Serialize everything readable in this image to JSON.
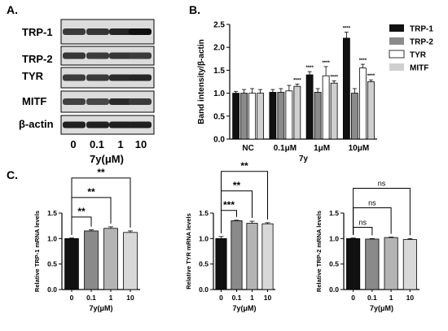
{
  "panel_labels": {
    "a": "A.",
    "b": "B.",
    "c": "C."
  },
  "colors": {
    "black": "#111111",
    "dark_gray": "#8a8a8a",
    "white": "#ffffff",
    "light_gray": "#cfcfcf",
    "stroke": "#000000"
  },
  "blot": {
    "rows": [
      "TRP-1",
      "TRP-2",
      "TYR",
      "MITF",
      "β-actin"
    ],
    "lanes": [
      "0",
      "0.1",
      "1",
      "10"
    ],
    "xlabel": "7y(μM)"
  },
  "chart_data": [
    {
      "type": "bar",
      "id": "B",
      "categories": [
        "NC",
        "0.1μM",
        "1μM",
        "10μM"
      ],
      "xlabel": "7y",
      "ylabel": "Band intensity/β-actin",
      "ylim": [
        0.0,
        2.5
      ],
      "yticks": [
        "0.0",
        "0.5",
        "1.0",
        "1.5",
        "2.0",
        "2.5"
      ],
      "legend_position": "right",
      "series": [
        {
          "name": "TRP-1",
          "color": "#111111",
          "values": [
            1.0,
            1.02,
            1.4,
            2.2
          ],
          "errors": [
            0.04,
            0.06,
            0.07,
            0.13
          ],
          "sig": [
            "",
            "",
            "****",
            "****"
          ]
        },
        {
          "name": "TRP-2",
          "color": "#8a8a8a",
          "values": [
            1.0,
            1.02,
            1.02,
            1.0
          ],
          "errors": [
            0.08,
            0.08,
            0.08,
            0.1
          ],
          "sig": [
            "",
            "",
            "",
            ""
          ]
        },
        {
          "name": "TYR",
          "color": "#ffffff",
          "values": [
            1.0,
            1.05,
            1.38,
            1.55
          ],
          "errors": [
            0.1,
            0.12,
            0.2,
            0.08
          ],
          "sig": [
            "",
            "",
            "****",
            "****"
          ]
        },
        {
          "name": "MITF",
          "color": "#cfcfcf",
          "values": [
            1.0,
            1.15,
            1.22,
            1.25
          ],
          "errors": [
            0.08,
            0.05,
            0.05,
            0.04
          ],
          "sig": [
            "",
            "****",
            "****",
            "****"
          ]
        }
      ]
    },
    {
      "type": "bar",
      "id": "C1",
      "categories": [
        "0",
        "0.1",
        "1",
        "10"
      ],
      "xlabel": "7y(μM)",
      "ylabel": "Relative TRP-1 mRNA levels",
      "ylim": [
        0.0,
        1.5
      ],
      "yticks": [
        "0.0",
        "0.5",
        "1.0",
        "1.5"
      ],
      "values": [
        1.0,
        1.15,
        1.2,
        1.12
      ],
      "errors": [
        0.01,
        0.02,
        0.03,
        0.03
      ],
      "colors": [
        "#111111",
        "#8a8a8a",
        "#b4b4b4",
        "#d8d8d8"
      ],
      "brackets": [
        {
          "from": 0,
          "to": 1,
          "level": 0,
          "label": "**"
        },
        {
          "from": 0,
          "to": 2,
          "level": 1,
          "label": "**"
        },
        {
          "from": 0,
          "to": 3,
          "level": 2,
          "label": "**"
        }
      ]
    },
    {
      "type": "bar",
      "id": "C2",
      "categories": [
        "0",
        "0.1",
        "1",
        "10"
      ],
      "xlabel": "7y(μM)",
      "ylabel": "Relative TYR mRNA levels",
      "ylim": [
        0.0,
        1.5
      ],
      "yticks": [
        "0.0",
        "0.5",
        "1.0",
        "1.5"
      ],
      "values": [
        1.0,
        1.35,
        1.3,
        1.29
      ],
      "errors": [
        0.04,
        0.01,
        0.04,
        0.02
      ],
      "colors": [
        "#111111",
        "#8a8a8a",
        "#b4b4b4",
        "#d8d8d8"
      ],
      "brackets": [
        {
          "from": 0,
          "to": 1,
          "level": 0,
          "label": "***"
        },
        {
          "from": 0,
          "to": 2,
          "level": 1,
          "label": "**"
        },
        {
          "from": 0,
          "to": 3,
          "level": 2,
          "label": "**"
        }
      ]
    },
    {
      "type": "bar",
      "id": "C3",
      "categories": [
        "0",
        "0.1",
        "1",
        "10"
      ],
      "xlabel": "7y(μM)",
      "ylabel": "Relative TRP-2 mRNA levels",
      "ylim": [
        0.0,
        1.5
      ],
      "yticks": [
        "0.0",
        "0.5",
        "1.0",
        "1.5"
      ],
      "values": [
        1.0,
        0.99,
        1.02,
        0.98
      ],
      "errors": [
        0.01,
        0.01,
        0.01,
        0.02
      ],
      "colors": [
        "#111111",
        "#8a8a8a",
        "#b4b4b4",
        "#d8d8d8"
      ],
      "brackets": [
        {
          "from": 0,
          "to": 1,
          "level": 0,
          "label": "ns"
        },
        {
          "from": 0,
          "to": 2,
          "level": 1,
          "label": "ns"
        },
        {
          "from": 0,
          "to": 3,
          "level": 2,
          "label": "ns"
        }
      ]
    }
  ]
}
